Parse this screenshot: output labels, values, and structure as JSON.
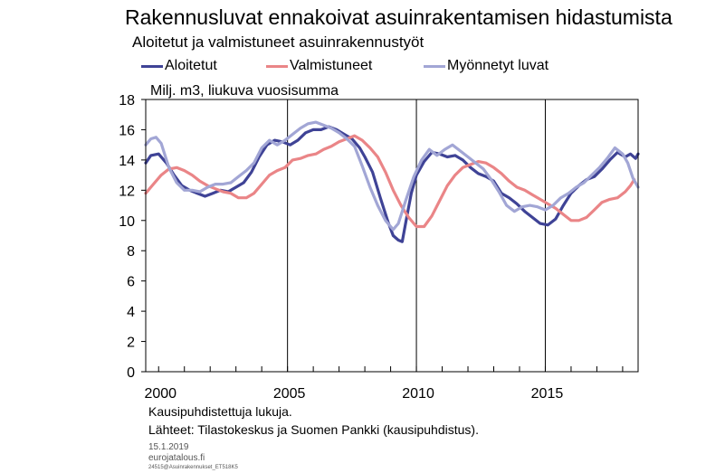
{
  "header": {
    "title": "Rakennusluvat ennakoivat asuinrakentamisen hidastumista",
    "subtitle": "Aloitetut ja valmistuneet asuinrakennustyöt"
  },
  "footer": {
    "note1": "Kausipuhdistettuja lukuja.",
    "note2": "Lähteet: Tilastokeskus ja Suomen Pankki (kausipuhdistus).",
    "date": "15.1.2019",
    "site": "eurojatalous.fi",
    "code": "24515@Asuinrakennukset_ET518K5"
  },
  "chart_data": {
    "type": "line",
    "title": "Rakennusluvat ennakoivat asuinrakentamisen hidastumista",
    "subtitle": "Aloitetut ja valmistuneet asuinrakennustyöt",
    "ylabel": "Milj. m3, liukuva vuosisumma",
    "ylim": [
      0,
      18
    ],
    "xlim": [
      1999.5,
      2018.6
    ],
    "yticks": [
      0,
      2,
      4,
      6,
      8,
      10,
      12,
      14,
      16,
      18
    ],
    "xticks": [
      2000,
      2005,
      2010,
      2015
    ],
    "grid": "vertical lines at 2005, 2010, 2015",
    "legend_position": "top",
    "series": [
      {
        "name": "Aloitetut",
        "color": "#3f4396",
        "points": [
          [
            1999.5,
            13.8
          ],
          [
            1999.7,
            14.3
          ],
          [
            2000.0,
            14.4
          ],
          [
            2000.3,
            13.8
          ],
          [
            2000.6,
            13.0
          ],
          [
            2000.9,
            12.3
          ],
          [
            2001.2,
            12.0
          ],
          [
            2001.5,
            11.8
          ],
          [
            2001.8,
            11.6
          ],
          [
            2002.1,
            11.8
          ],
          [
            2002.4,
            12.0
          ],
          [
            2002.7,
            11.9
          ],
          [
            2003.0,
            12.2
          ],
          [
            2003.3,
            12.5
          ],
          [
            2003.6,
            13.2
          ],
          [
            2003.9,
            14.2
          ],
          [
            2004.2,
            15.0
          ],
          [
            2004.5,
            15.3
          ],
          [
            2004.8,
            15.2
          ],
          [
            2005.1,
            15.0
          ],
          [
            2005.4,
            15.3
          ],
          [
            2005.7,
            15.8
          ],
          [
            2006.0,
            16.0
          ],
          [
            2006.3,
            16.0
          ],
          [
            2006.6,
            16.2
          ],
          [
            2006.9,
            16.0
          ],
          [
            2007.2,
            15.7
          ],
          [
            2007.5,
            15.4
          ],
          [
            2007.8,
            14.8
          ],
          [
            2008.0,
            14.2
          ],
          [
            2008.3,
            13.2
          ],
          [
            2008.6,
            11.5
          ],
          [
            2008.9,
            9.9
          ],
          [
            2009.1,
            9.0
          ],
          [
            2009.3,
            8.7
          ],
          [
            2009.45,
            8.6
          ],
          [
            2009.6,
            10.0
          ],
          [
            2009.8,
            11.8
          ],
          [
            2010.0,
            13.0
          ],
          [
            2010.3,
            13.9
          ],
          [
            2010.6,
            14.5
          ],
          [
            2010.9,
            14.4
          ],
          [
            2011.2,
            14.2
          ],
          [
            2011.5,
            14.3
          ],
          [
            2011.8,
            14.0
          ],
          [
            2012.1,
            13.5
          ],
          [
            2012.4,
            13.1
          ],
          [
            2012.7,
            12.9
          ],
          [
            2013.0,
            12.6
          ],
          [
            2013.3,
            11.8
          ],
          [
            2013.6,
            11.5
          ],
          [
            2013.9,
            11.1
          ],
          [
            2014.2,
            10.6
          ],
          [
            2014.5,
            10.2
          ],
          [
            2014.8,
            9.8
          ],
          [
            2015.1,
            9.7
          ],
          [
            2015.4,
            10.1
          ],
          [
            2015.7,
            11.0
          ],
          [
            2016.0,
            11.8
          ],
          [
            2016.3,
            12.3
          ],
          [
            2016.6,
            12.7
          ],
          [
            2016.9,
            12.9
          ],
          [
            2017.2,
            13.4
          ],
          [
            2017.5,
            14.0
          ],
          [
            2017.8,
            14.5
          ],
          [
            2018.1,
            14.2
          ],
          [
            2018.3,
            14.4
          ],
          [
            2018.5,
            14.1
          ],
          [
            2018.6,
            14.4
          ]
        ]
      },
      {
        "name": "Valmistuneet",
        "color": "#ea8587",
        "points": [
          [
            1999.5,
            11.8
          ],
          [
            1999.8,
            12.4
          ],
          [
            2000.1,
            13.0
          ],
          [
            2000.4,
            13.4
          ],
          [
            2000.7,
            13.5
          ],
          [
            2001.0,
            13.3
          ],
          [
            2001.3,
            13.0
          ],
          [
            2001.6,
            12.6
          ],
          [
            2001.9,
            12.3
          ],
          [
            2002.2,
            12.1
          ],
          [
            2002.5,
            11.9
          ],
          [
            2002.8,
            11.8
          ],
          [
            2003.1,
            11.5
          ],
          [
            2003.4,
            11.5
          ],
          [
            2003.7,
            11.8
          ],
          [
            2004.0,
            12.4
          ],
          [
            2004.3,
            13.0
          ],
          [
            2004.6,
            13.3
          ],
          [
            2004.9,
            13.5
          ],
          [
            2005.2,
            14.0
          ],
          [
            2005.5,
            14.1
          ],
          [
            2005.8,
            14.3
          ],
          [
            2006.1,
            14.4
          ],
          [
            2006.4,
            14.7
          ],
          [
            2006.7,
            14.9
          ],
          [
            2007.0,
            15.2
          ],
          [
            2007.3,
            15.4
          ],
          [
            2007.6,
            15.6
          ],
          [
            2007.9,
            15.3
          ],
          [
            2008.2,
            14.8
          ],
          [
            2008.5,
            14.2
          ],
          [
            2008.8,
            13.2
          ],
          [
            2009.1,
            12.0
          ],
          [
            2009.4,
            11.0
          ],
          [
            2009.7,
            10.2
          ],
          [
            2010.0,
            9.6
          ],
          [
            2010.3,
            9.6
          ],
          [
            2010.6,
            10.3
          ],
          [
            2010.9,
            11.3
          ],
          [
            2011.2,
            12.3
          ],
          [
            2011.5,
            13.0
          ],
          [
            2011.8,
            13.5
          ],
          [
            2012.1,
            13.7
          ],
          [
            2012.4,
            13.9
          ],
          [
            2012.7,
            13.8
          ],
          [
            2013.0,
            13.5
          ],
          [
            2013.3,
            13.1
          ],
          [
            2013.6,
            12.6
          ],
          [
            2013.9,
            12.2
          ],
          [
            2014.2,
            12.0
          ],
          [
            2014.5,
            11.7
          ],
          [
            2014.8,
            11.4
          ],
          [
            2015.1,
            11.1
          ],
          [
            2015.4,
            10.8
          ],
          [
            2015.7,
            10.4
          ],
          [
            2016.0,
            10.0
          ],
          [
            2016.3,
            10.0
          ],
          [
            2016.6,
            10.2
          ],
          [
            2016.9,
            10.7
          ],
          [
            2017.2,
            11.2
          ],
          [
            2017.5,
            11.4
          ],
          [
            2017.8,
            11.5
          ],
          [
            2018.1,
            11.9
          ],
          [
            2018.3,
            12.3
          ],
          [
            2018.45,
            12.7
          ]
        ]
      },
      {
        "name": "Myönnetyt luvat",
        "color": "#a2a6d5",
        "points": [
          [
            1999.5,
            15.0
          ],
          [
            1999.7,
            15.4
          ],
          [
            1999.9,
            15.5
          ],
          [
            2000.1,
            15.1
          ],
          [
            2000.4,
            13.5
          ],
          [
            2000.7,
            12.5
          ],
          [
            2001.0,
            12.0
          ],
          [
            2001.3,
            12.0
          ],
          [
            2001.6,
            11.9
          ],
          [
            2001.9,
            12.2
          ],
          [
            2002.2,
            12.4
          ],
          [
            2002.5,
            12.4
          ],
          [
            2002.8,
            12.5
          ],
          [
            2003.1,
            12.9
          ],
          [
            2003.4,
            13.3
          ],
          [
            2003.7,
            13.8
          ],
          [
            2004.0,
            14.8
          ],
          [
            2004.3,
            15.3
          ],
          [
            2004.6,
            15.0
          ],
          [
            2004.9,
            15.3
          ],
          [
            2005.2,
            15.7
          ],
          [
            2005.5,
            16.1
          ],
          [
            2005.8,
            16.4
          ],
          [
            2006.1,
            16.5
          ],
          [
            2006.4,
            16.3
          ],
          [
            2006.7,
            16.1
          ],
          [
            2007.0,
            15.8
          ],
          [
            2007.3,
            15.4
          ],
          [
            2007.6,
            14.9
          ],
          [
            2007.9,
            13.6
          ],
          [
            2008.2,
            12.2
          ],
          [
            2008.5,
            11.0
          ],
          [
            2008.8,
            10.0
          ],
          [
            2009.1,
            9.4
          ],
          [
            2009.3,
            9.8
          ],
          [
            2009.6,
            11.4
          ],
          [
            2009.9,
            12.9
          ],
          [
            2010.2,
            14.0
          ],
          [
            2010.5,
            14.7
          ],
          [
            2010.8,
            14.3
          ],
          [
            2011.1,
            14.7
          ],
          [
            2011.4,
            15.0
          ],
          [
            2011.7,
            14.6
          ],
          [
            2012.0,
            14.2
          ],
          [
            2012.3,
            13.8
          ],
          [
            2012.6,
            13.4
          ],
          [
            2012.9,
            12.7
          ],
          [
            2013.2,
            11.9
          ],
          [
            2013.5,
            11.0
          ],
          [
            2013.8,
            10.6
          ],
          [
            2014.1,
            10.9
          ],
          [
            2014.4,
            11.0
          ],
          [
            2014.7,
            10.9
          ],
          [
            2015.0,
            10.7
          ],
          [
            2015.3,
            11.0
          ],
          [
            2015.6,
            11.5
          ],
          [
            2015.9,
            11.8
          ],
          [
            2016.2,
            12.2
          ],
          [
            2016.5,
            12.5
          ],
          [
            2016.8,
            13.0
          ],
          [
            2017.1,
            13.5
          ],
          [
            2017.4,
            14.1
          ],
          [
            2017.7,
            14.8
          ],
          [
            2018.0,
            14.4
          ],
          [
            2018.2,
            13.8
          ],
          [
            2018.4,
            12.8
          ],
          [
            2018.6,
            12.2
          ]
        ]
      }
    ]
  }
}
